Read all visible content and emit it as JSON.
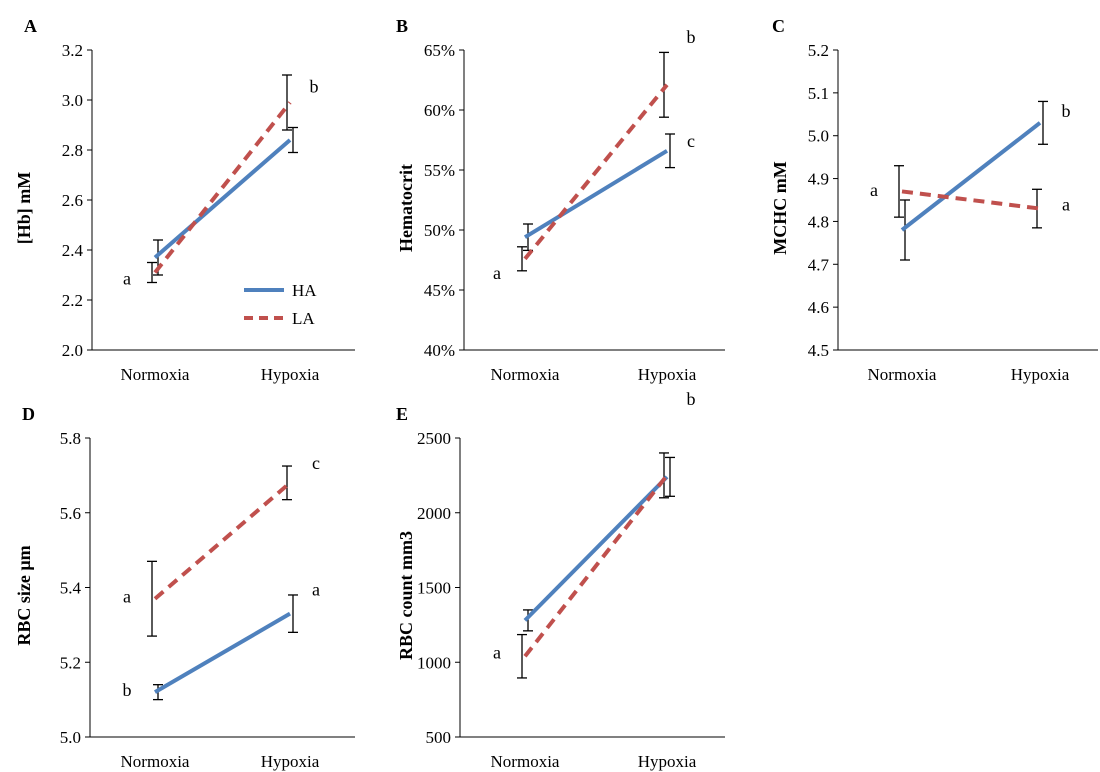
{
  "colors": {
    "HA": "#4f81bd",
    "LA": "#c0504d",
    "axis": "#000000"
  },
  "legend": {
    "placement": "bottom-right of panel A",
    "entries": [
      "HA",
      "LA"
    ]
  },
  "chart_data": [
    {
      "panel": "A",
      "type": "line",
      "categories": [
        "Normoxia",
        "Hypoxia"
      ],
      "ylabel": "[Hb] mM",
      "ylim": [
        2.0,
        3.2
      ],
      "yticks": [
        "2.0",
        "2.2",
        "2.4",
        "2.6",
        "2.8",
        "3.0",
        "3.2"
      ],
      "series": [
        {
          "name": "HA",
          "values": [
            2.37,
            2.84
          ],
          "errors": [
            0.07,
            0.05
          ]
        },
        {
          "name": "LA",
          "values": [
            2.31,
            2.99
          ],
          "errors": [
            0.04,
            0.11
          ]
        }
      ],
      "letters": [
        {
          "category": "Normoxia",
          "text": "a"
        },
        {
          "category": "Hypoxia",
          "text": "b"
        }
      ]
    },
    {
      "panel": "B",
      "type": "line",
      "categories": [
        "Normoxia",
        "Hypoxia"
      ],
      "ylabel": "Hematocrit",
      "ylim": [
        40,
        65
      ],
      "yticks": [
        "40%",
        "45%",
        "50%",
        "55%",
        "60%",
        "65%"
      ],
      "series": [
        {
          "name": "HA",
          "values": [
            49.4,
            56.6
          ],
          "errors": [
            1.1,
            1.4
          ]
        },
        {
          "name": "LA",
          "values": [
            47.6,
            62.1
          ],
          "errors": [
            1.0,
            2.7
          ]
        }
      ],
      "letters": [
        {
          "category": "Normoxia",
          "text": "a"
        },
        {
          "category": "Hypoxia",
          "text": "c"
        },
        {
          "category": "Hypoxia",
          "text": "b"
        }
      ]
    },
    {
      "panel": "C",
      "type": "line",
      "categories": [
        "Normoxia",
        "Hypoxia"
      ],
      "ylabel": "MCHC mM",
      "ylim": [
        4.5,
        5.2
      ],
      "yticks": [
        "4.5",
        "4.6",
        "4.7",
        "4.8",
        "4.9",
        "5.0",
        "5.1",
        "5.2"
      ],
      "series": [
        {
          "name": "HA",
          "values": [
            4.78,
            5.03
          ],
          "errors": [
            0.07,
            0.05
          ]
        },
        {
          "name": "LA",
          "values": [
            4.87,
            4.83
          ],
          "errors": [
            0.06,
            0.045
          ]
        }
      ],
      "letters": [
        {
          "category": "Normoxia",
          "text": "a"
        },
        {
          "category": "Hypoxia",
          "text": "b"
        },
        {
          "category": "Hypoxia",
          "text": "a"
        }
      ]
    },
    {
      "panel": "D",
      "type": "line",
      "categories": [
        "Normoxia",
        "Hypoxia"
      ],
      "ylabel": "RBC size µm",
      "ylim": [
        5.0,
        5.8
      ],
      "yticks": [
        "5.0",
        "5.2",
        "5.4",
        "5.6",
        "5.8"
      ],
      "series": [
        {
          "name": "HA",
          "values": [
            5.12,
            5.33
          ],
          "errors": [
            0.02,
            0.05
          ]
        },
        {
          "name": "LA",
          "values": [
            5.37,
            5.68
          ],
          "errors": [
            0.1,
            0.045
          ]
        }
      ],
      "letters": [
        {
          "category": "Normoxia",
          "text": "a"
        },
        {
          "category": "Normoxia",
          "text": "b"
        },
        {
          "category": "Hypoxia",
          "text": "c"
        },
        {
          "category": "Hypoxia",
          "text": "a"
        }
      ]
    },
    {
      "panel": "E",
      "type": "line",
      "categories": [
        "Normoxia",
        "Hypoxia"
      ],
      "ylabel": "RBC count mm3",
      "ylim": [
        500,
        2500
      ],
      "yticks": [
        "500",
        "1000",
        "1500",
        "2000",
        "2500"
      ],
      "series": [
        {
          "name": "HA",
          "values": [
            1280,
            2240
          ],
          "errors": [
            70,
            130
          ]
        },
        {
          "name": "LA",
          "values": [
            1040,
            2250
          ],
          "errors": [
            145,
            150
          ]
        }
      ],
      "letters": [
        {
          "category": "Normoxia",
          "text": "a"
        },
        {
          "category": "Hypoxia",
          "text": "b"
        }
      ]
    }
  ]
}
